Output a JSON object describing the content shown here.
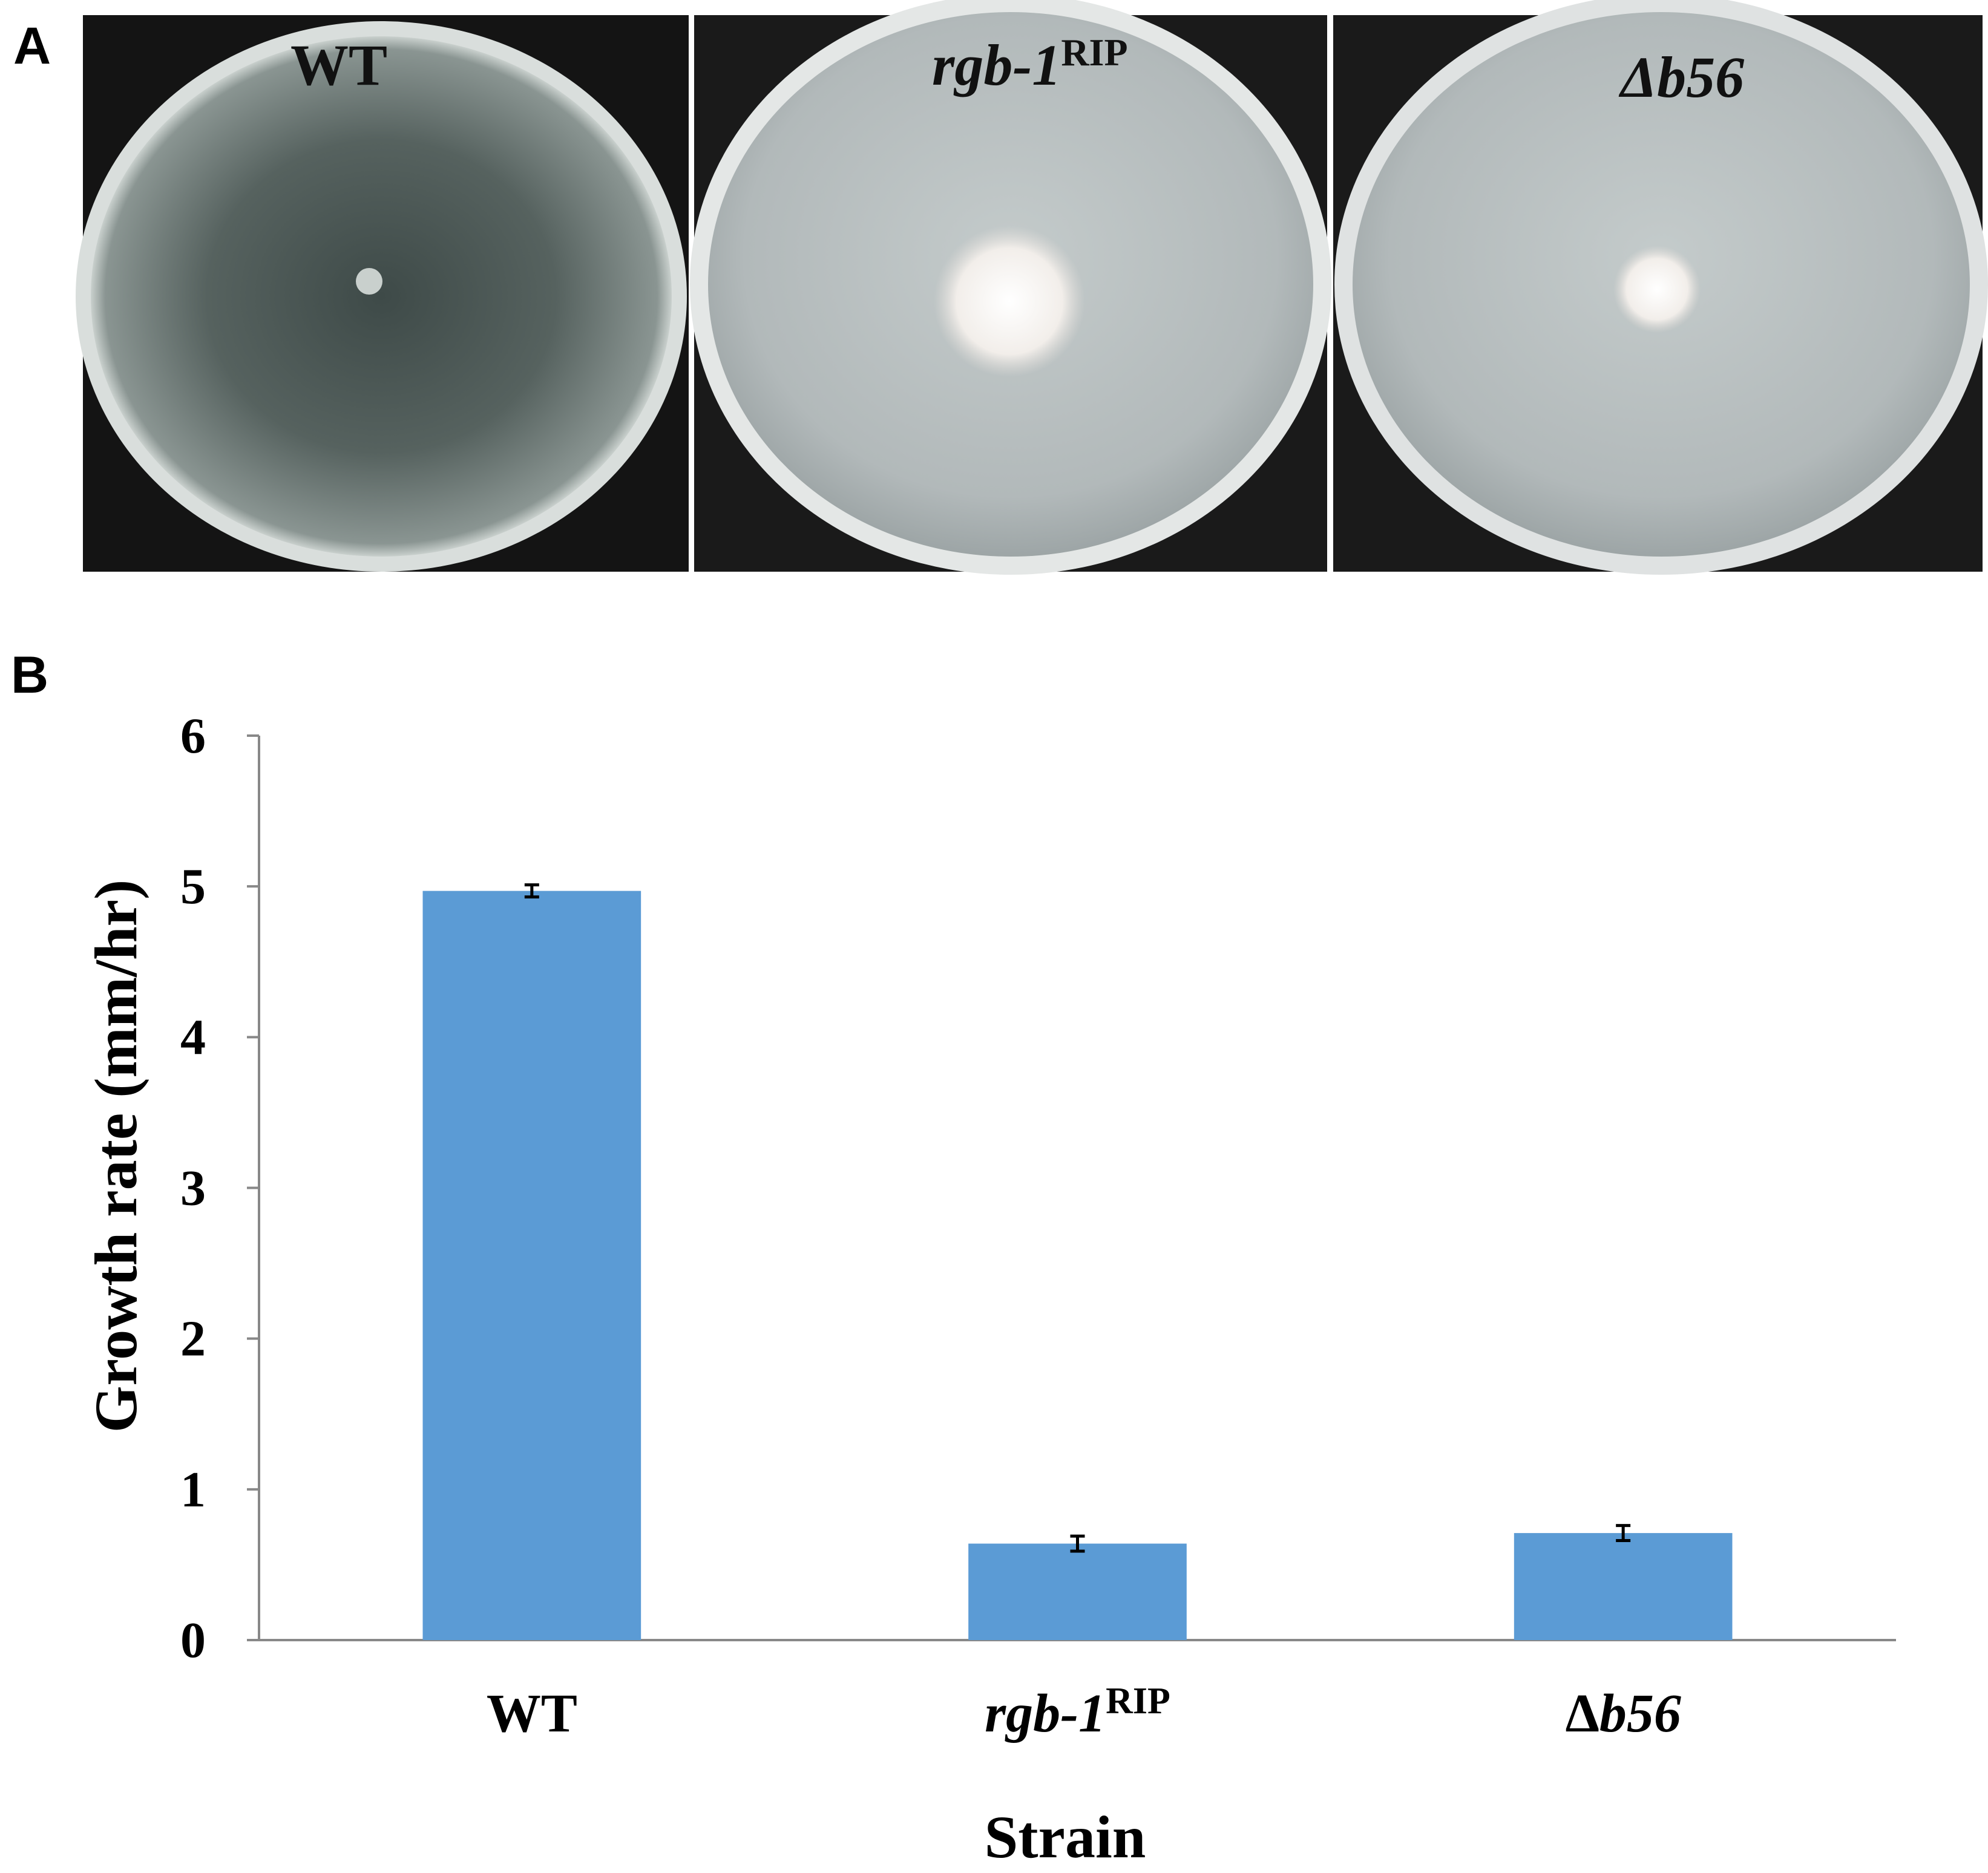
{
  "panel_a": {
    "label": "A",
    "plates": [
      {
        "name": "WT",
        "main": "WT",
        "sup": "",
        "italic": false
      },
      {
        "name": "rgb-1RIP",
        "main": "rgb-1",
        "sup": "RIP",
        "italic": true
      },
      {
        "name": "Δb56",
        "main": "Δ",
        "main2": "b56",
        "sup": "",
        "italic": true
      }
    ]
  },
  "panel_b": {
    "label": "B"
  },
  "chart_data": {
    "type": "bar",
    "categories": [
      {
        "main": "WT",
        "sup": "",
        "italic": false
      },
      {
        "main": "rgb-1",
        "sup": "RIP",
        "italic": true
      },
      {
        "main": "Δ",
        "main2": "b56",
        "sup": "",
        "italic": true
      }
    ],
    "values": [
      4.97,
      0.64,
      0.71
    ],
    "errors": [
      0.04,
      0.05,
      0.05
    ],
    "xlabel": "Strain",
    "ylabel": "Growth rate (mm/hr)",
    "ylim": [
      0,
      6
    ],
    "yticks": [
      "0",
      "1",
      "2",
      "3",
      "4",
      "5",
      "6"
    ],
    "grid": false,
    "bar_color": "#5B9BD5"
  }
}
